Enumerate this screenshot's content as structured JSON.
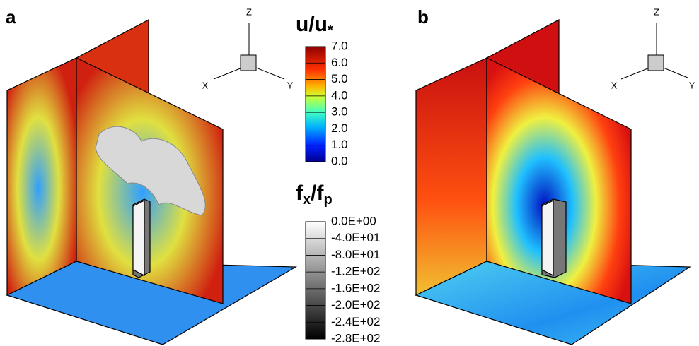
{
  "panels": [
    {
      "label": "a",
      "axes": [
        "Z",
        "X",
        "Y"
      ]
    },
    {
      "label": "b",
      "axes": [
        "Z",
        "X",
        "Y"
      ]
    }
  ],
  "colorbar_u": {
    "title": [
      "u/u",
      "*"
    ],
    "ticks": [
      "7.0",
      "6.0",
      "5.0",
      "4.0",
      "3.0",
      "2.0",
      "1.0",
      "0.0"
    ]
  },
  "colorbar_f": {
    "title": [
      "f",
      "x",
      "/f",
      "p"
    ],
    "ticks": [
      "0.0E+00",
      "-4.0E+01",
      "-8.0E+01",
      "-1.2E+02",
      "-1.6E+02",
      "-2.0E+02",
      "-2.4E+02",
      "-2.8E+02"
    ]
  }
}
